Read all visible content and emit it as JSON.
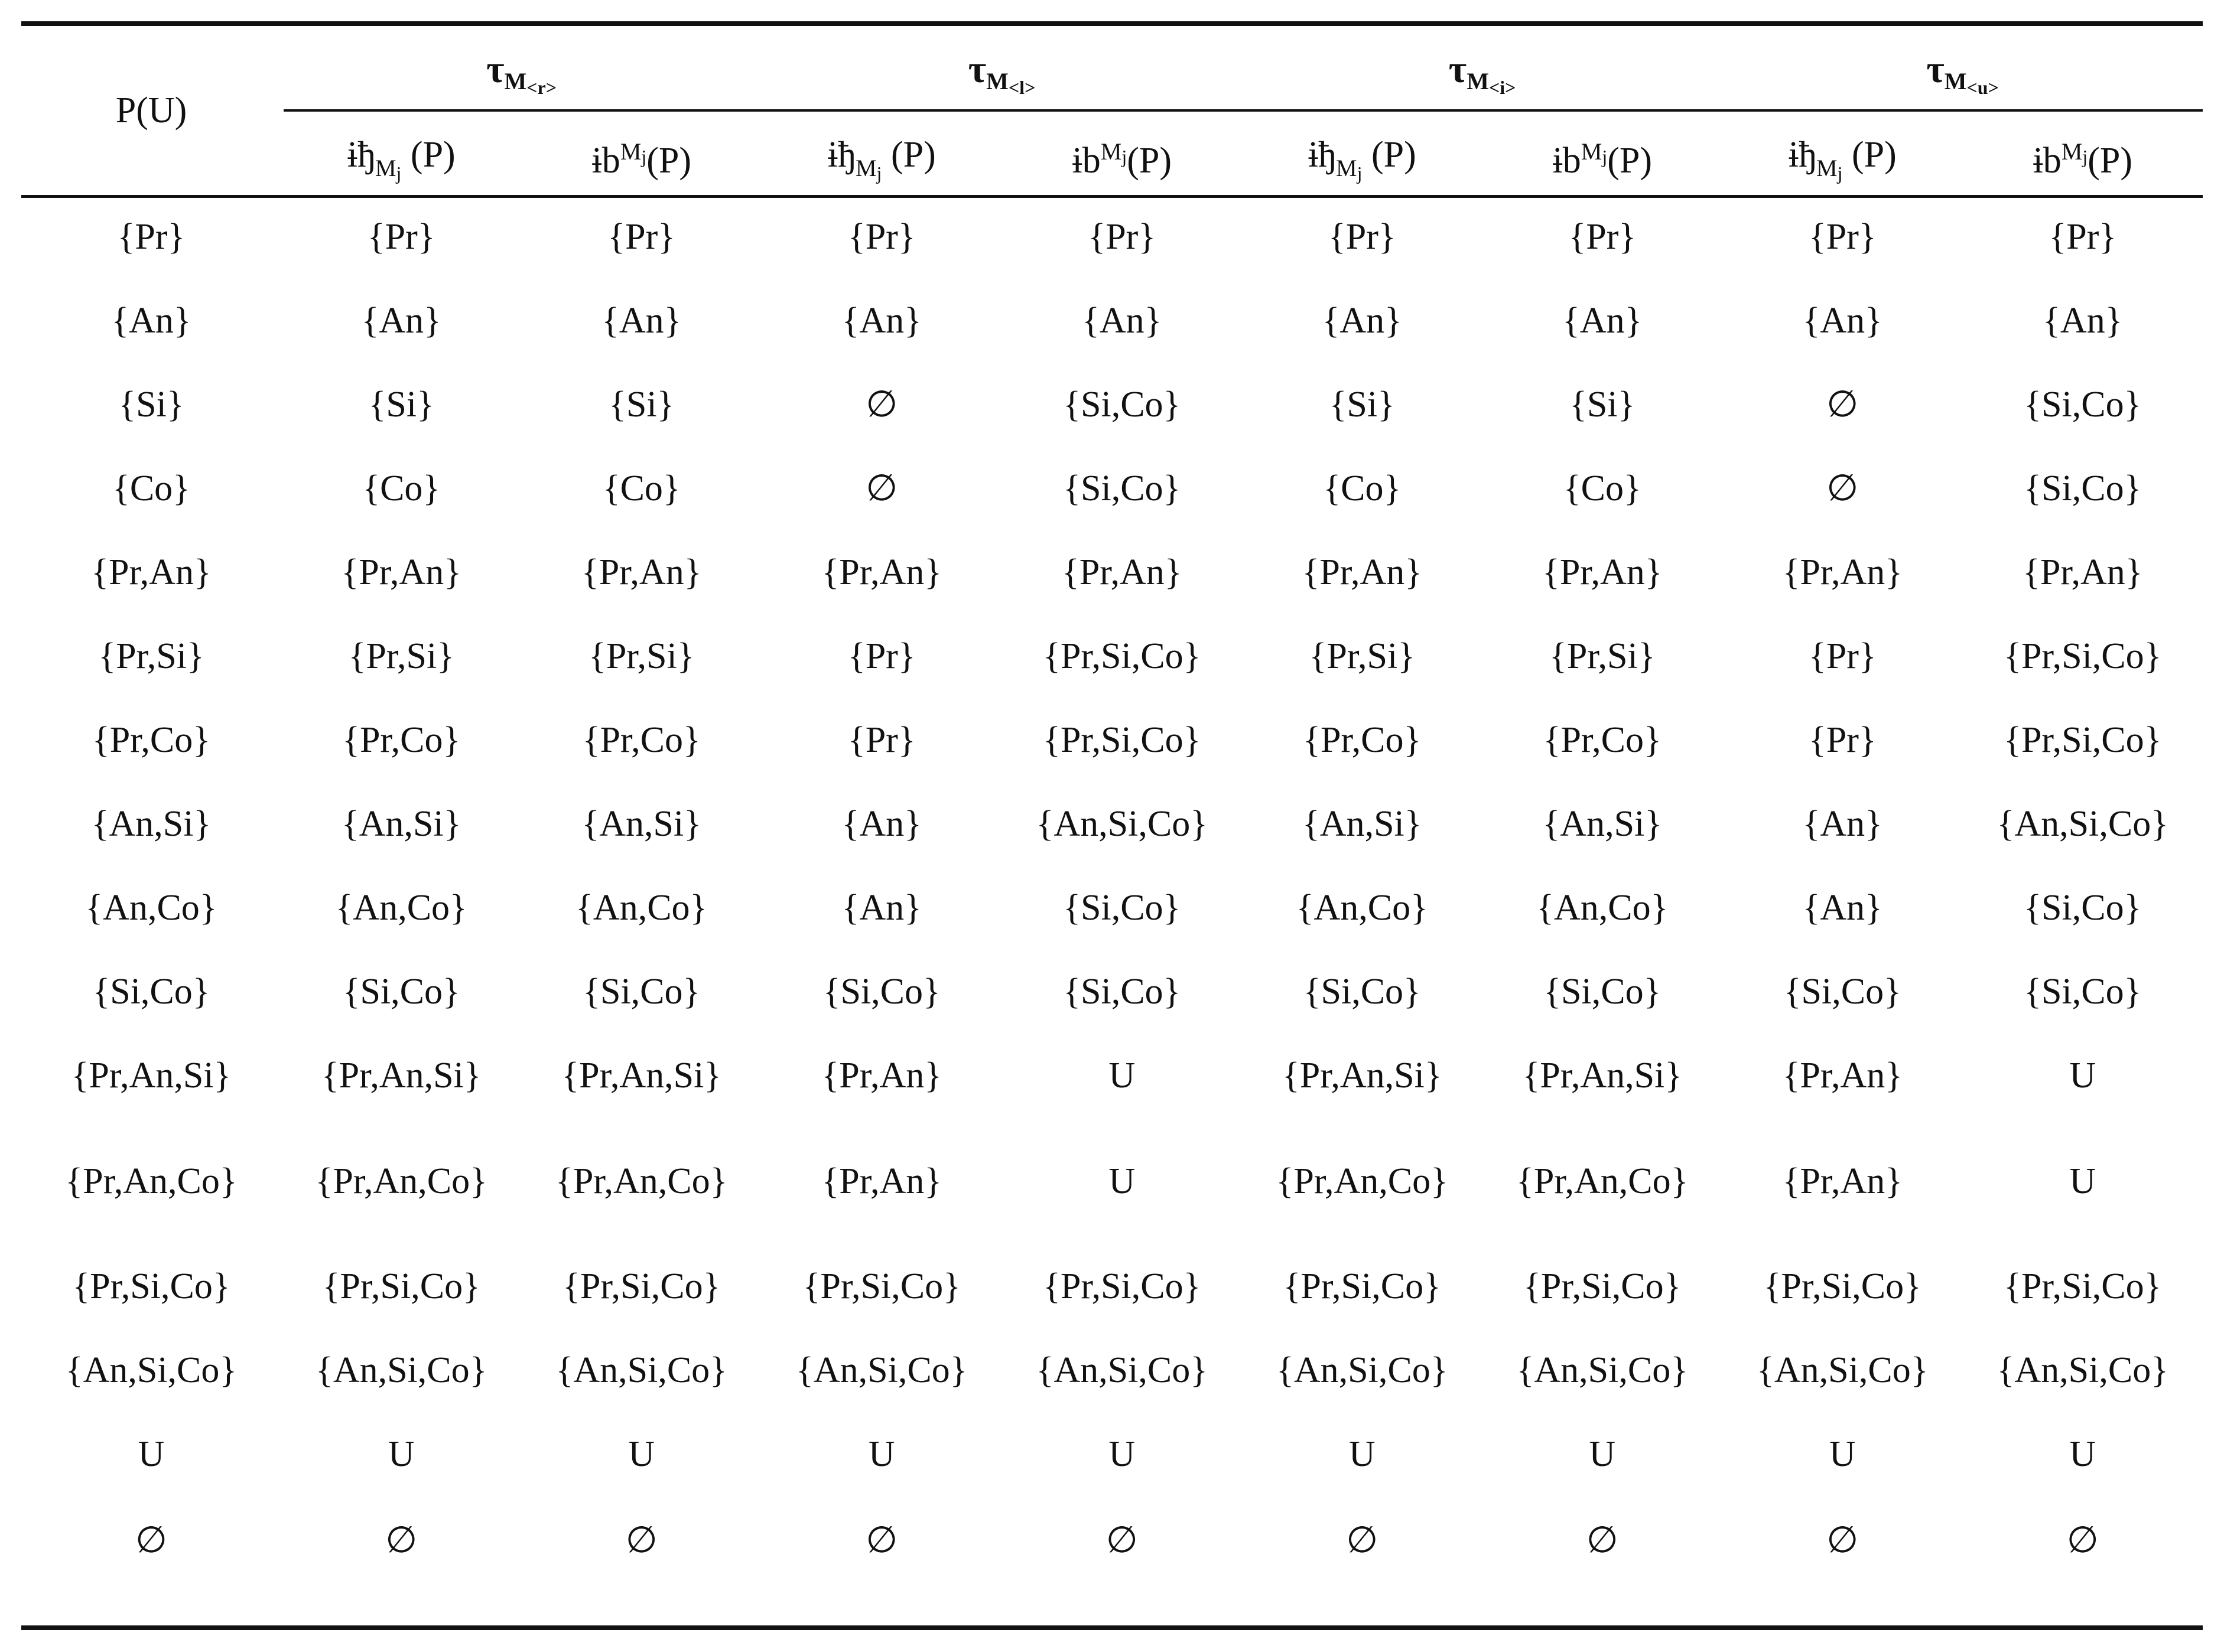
{
  "table": {
    "corner_header": "P(U)",
    "groups": [
      {
        "tau": "τ",
        "sub_main": "M",
        "sub_index": "<r>"
      },
      {
        "tau": "τ",
        "sub_main": "M",
        "sub_index": "<l>"
      },
      {
        "tau": "τ",
        "sub_main": "M",
        "sub_index": "<i>"
      },
      {
        "tau": "τ",
        "sub_main": "M",
        "sub_index": "<u>"
      }
    ],
    "subheaders": {
      "lower": {
        "op": "ɨђ",
        "sub_main": "M",
        "sub_index": "j",
        "arg": " (P)"
      },
      "upper": {
        "op": "ɨb",
        "sup_main": "M",
        "sup_index": "j",
        "arg": "(P)"
      }
    },
    "rows": [
      [
        "{Pr}",
        "{Pr}",
        "{Pr}",
        "{Pr}",
        "{Pr}",
        "{Pr}",
        "{Pr}",
        "{Pr}",
        "{Pr}"
      ],
      [
        "{An}",
        "{An}",
        "{An}",
        "{An}",
        "{An}",
        "{An}",
        "{An}",
        "{An}",
        "{An}"
      ],
      [
        "{Si}",
        "{Si}",
        "{Si}",
        "∅",
        "{Si,Co}",
        "{Si}",
        "{Si}",
        "∅",
        "{Si,Co}"
      ],
      [
        "{Co}",
        "{Co}",
        "{Co}",
        "∅",
        "{Si,Co}",
        "{Co}",
        "{Co}",
        "∅",
        "{Si,Co}"
      ],
      [
        "{Pr,An}",
        "{Pr,An}",
        "{Pr,An}",
        "{Pr,An}",
        "{Pr,An}",
        "{Pr,An}",
        "{Pr,An}",
        "{Pr,An}",
        "{Pr,An}"
      ],
      [
        "{Pr,Si}",
        "{Pr,Si}",
        "{Pr,Si}",
        "{Pr}",
        "{Pr,Si,Co}",
        "{Pr,Si}",
        "{Pr,Si}",
        "{Pr}",
        "{Pr,Si,Co}"
      ],
      [
        "{Pr,Co}",
        "{Pr,Co}",
        "{Pr,Co}",
        "{Pr}",
        "{Pr,Si,Co}",
        "{Pr,Co}",
        "{Pr,Co}",
        "{Pr}",
        "{Pr,Si,Co}"
      ],
      [
        "{An,Si}",
        "{An,Si}",
        "{An,Si}",
        "{An}",
        "{An,Si,Co}",
        "{An,Si}",
        "{An,Si}",
        "{An}",
        "{An,Si,Co}"
      ],
      [
        "{An,Co}",
        "{An,Co}",
        "{An,Co}",
        "{An}",
        "{Si,Co}",
        "{An,Co}",
        "{An,Co}",
        "{An}",
        "{Si,Co}"
      ],
      [
        "{Si,Co}",
        "{Si,Co}",
        "{Si,Co}",
        "{Si,Co}",
        "{Si,Co}",
        "{Si,Co}",
        "{Si,Co}",
        "{Si,Co}",
        "{Si,Co}"
      ],
      [
        "{Pr,An,Si}",
        "{Pr,An,Si}",
        "{Pr,An,Si}",
        "{Pr,An}",
        "U",
        "{Pr,An,Si}",
        "{Pr,An,Si}",
        "{Pr,An}",
        "U"
      ],
      [
        "{Pr,An,Co}",
        "{Pr,An,Co}",
        "{Pr,An,Co}",
        "{Pr,An}",
        "U",
        "{Pr,An,Co}",
        "{Pr,An,Co}",
        "{Pr,An}",
        "U"
      ],
      [
        "{Pr,Si,Co}",
        "{Pr,Si,Co}",
        "{Pr,Si,Co}",
        "{Pr,Si,Co}",
        "{Pr,Si,Co}",
        "{Pr,Si,Co}",
        "{Pr,Si,Co}",
        "{Pr,Si,Co}",
        "{Pr,Si,Co}"
      ],
      [
        "{An,Si,Co}",
        "{An,Si,Co}",
        "{An,Si,Co}",
        "{An,Si,Co}",
        "{An,Si,Co}",
        "{An,Si,Co}",
        "{An,Si,Co}",
        "{An,Si,Co}",
        "{An,Si,Co}"
      ],
      [
        "U",
        "U",
        "U",
        "U",
        "U",
        "U",
        "U",
        "U",
        "U"
      ],
      [
        "∅",
        "∅",
        "∅",
        "∅",
        "∅",
        "∅",
        "∅",
        "∅",
        "∅"
      ]
    ]
  }
}
